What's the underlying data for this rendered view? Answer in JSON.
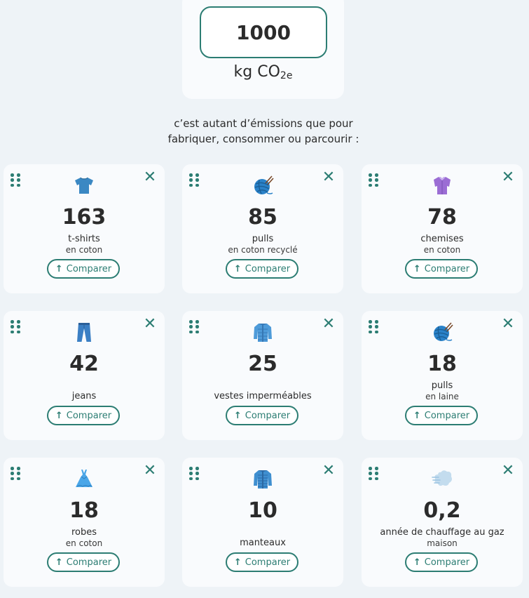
{
  "header": {
    "value": "1000",
    "unit_main": "kg CO",
    "unit_sub": "2e",
    "intro_line1": "c’est autant d’émissions que pour",
    "intro_line2": "fabriquer, consommer ou parcourir :"
  },
  "compare_label": "Comparer",
  "colors": {
    "accent": "#2c7d73",
    "card_bg": "#f9fbfd",
    "page_bg": "#eef3f7"
  },
  "cards": [
    {
      "icon": "tshirt-icon",
      "value": "163",
      "label": "t-shirts",
      "sublabel": "en coton"
    },
    {
      "icon": "yarn-ball-icon",
      "value": "85",
      "label": "pulls",
      "sublabel": "en coton recyclé"
    },
    {
      "icon": "shirt-icon",
      "value": "78",
      "label": "chemises",
      "sublabel": "en coton"
    },
    {
      "icon": "jeans-icon",
      "value": "42",
      "label": "jeans",
      "sublabel": ""
    },
    {
      "icon": "jacket-icon",
      "value": "25",
      "label": "vestes imperméables",
      "sublabel": ""
    },
    {
      "icon": "yarn-ball-icon",
      "value": "18",
      "label": "pulls",
      "sublabel": "en laine"
    },
    {
      "icon": "dress-icon",
      "value": "18",
      "label": "robes",
      "sublabel": "en coton"
    },
    {
      "icon": "coat-icon",
      "value": "10",
      "label": "manteaux",
      "sublabel": ""
    },
    {
      "icon": "wind-gust-icon",
      "value": "0,2",
      "label": "année de chauffage au gaz",
      "sublabel": "maison"
    }
  ]
}
